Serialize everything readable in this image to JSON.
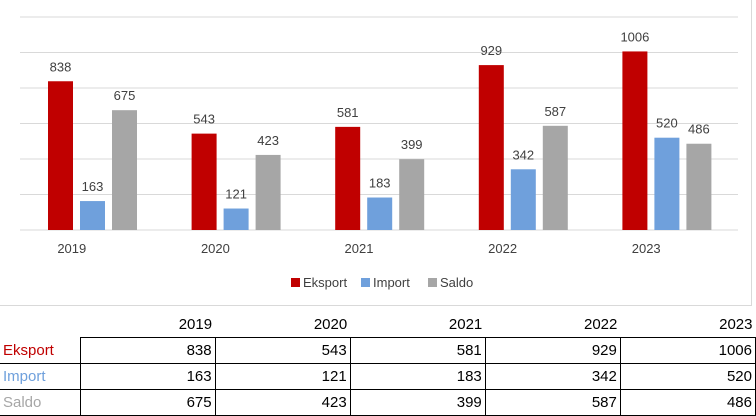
{
  "colors": {
    "Eksport": "#c00000",
    "Import": "#6fa0dc",
    "Saldo": "#a6a6a6",
    "grid": "#d9d9d9",
    "text": "#404040"
  },
  "chart_data": {
    "type": "bar",
    "categories": [
      "2019",
      "2020",
      "2021",
      "2022",
      "2023"
    ],
    "series": [
      {
        "name": "Eksport",
        "values": [
          838,
          543,
          581,
          929,
          1006
        ]
      },
      {
        "name": "Import",
        "values": [
          163,
          121,
          183,
          342,
          520
        ]
      },
      {
        "name": "Saldo",
        "values": [
          675,
          423,
          399,
          587,
          486
        ]
      }
    ],
    "ylim": [
      0,
      1200
    ],
    "gridline_step": 200,
    "grid": true,
    "legend_position": "bottom-center",
    "title": "",
    "xlabel": "",
    "ylabel": ""
  },
  "table": {
    "headers": [
      "2019",
      "2020",
      "2021",
      "2022",
      "2023"
    ],
    "rows": [
      {
        "label": "Eksport",
        "values": [
          "838",
          "543",
          "581",
          "929",
          "1006"
        ]
      },
      {
        "label": "Import",
        "values": [
          "163",
          "121",
          "183",
          "342",
          "520"
        ]
      },
      {
        "label": "Saldo",
        "values": [
          "675",
          "423",
          "399",
          "587",
          "486"
        ]
      }
    ]
  }
}
